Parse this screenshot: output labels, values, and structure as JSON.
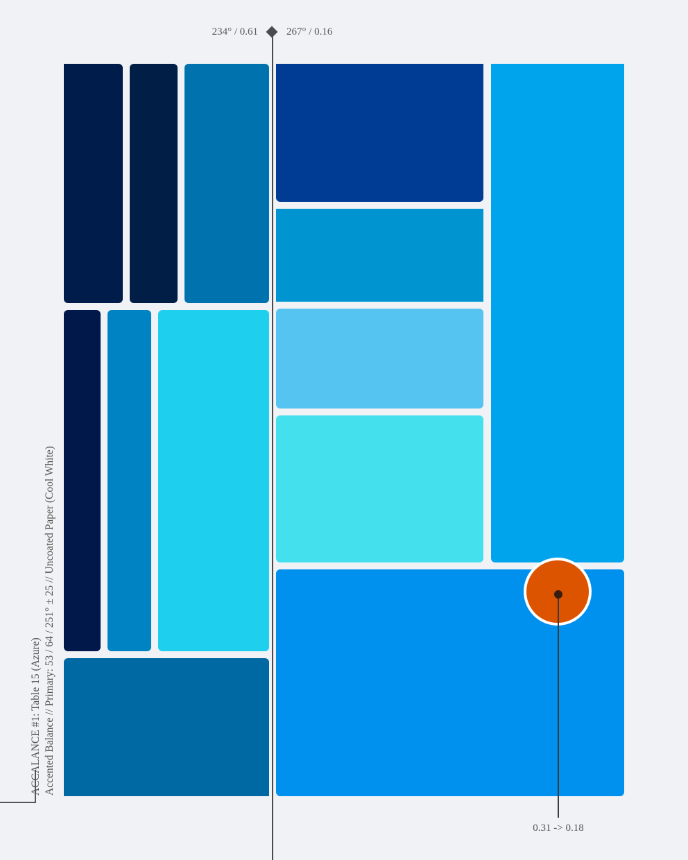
{
  "colors": {
    "background": "#f1f2f6",
    "accent": "#dc5400",
    "ink": "#4a4a4f"
  },
  "palette": [
    "#001c4a",
    "#001e46",
    "#0072ae",
    "#003c94",
    "#0094d0",
    "#00184a",
    "#0083c2",
    "#1ecfee",
    "#56c4f0",
    "#44e0ee",
    "#00a4ec",
    "#0068a2",
    "#0090ee"
  ],
  "axis": {
    "left_label": "234° / 0.61",
    "right_label": "267° / 0.16"
  },
  "marker": {
    "label": "0.31 -> 0.18",
    "icon": "circle-marker-icon"
  },
  "caption": {
    "line1": "ACCALANCE #1: Table 15 (Azure)",
    "line2": "Accented Balance // Primary: 53 / 64 / 251° ± 25 // Uncoated Paper (Cool White)"
  }
}
